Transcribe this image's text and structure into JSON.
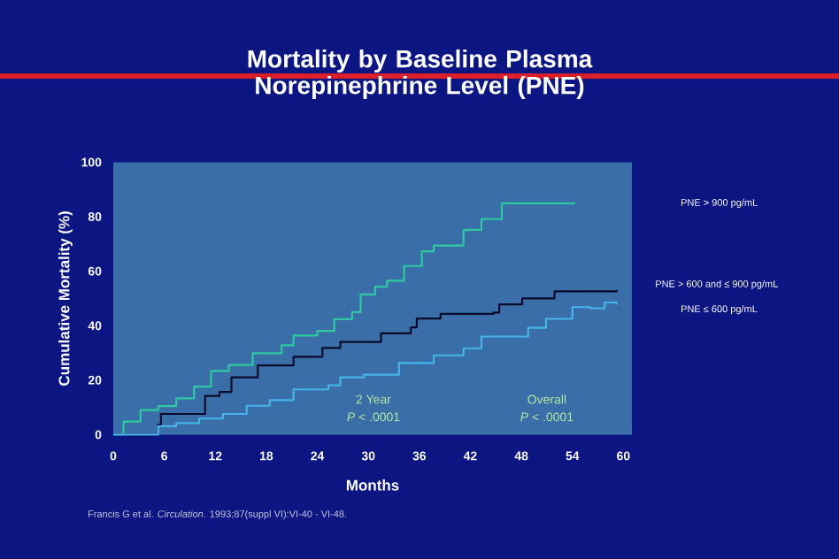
{
  "chart_data": {
    "type": "step",
    "title": "Mortality by Baseline Plasma Norepinephrine Level (PNE)",
    "xlabel": "Months",
    "ylabel": "Cumulative Mortality (%)",
    "xlim": [
      0,
      61
    ],
    "ylim": [
      0,
      100
    ],
    "xticks": [
      0,
      6,
      12,
      18,
      24,
      30,
      36,
      42,
      48,
      54,
      60
    ],
    "yticks": [
      0,
      20,
      40,
      60,
      80,
      100
    ],
    "grid": false,
    "annotations": [
      "2 Year",
      "*P* < .0001",
      "Overall",
      "*P* < .0001",
      "Francis G et al. *Circulation*. 1993;87(suppl VI):VI-40  - VI-48."
    ],
    "series": [
      {
        "name": "PNE > 900 pg/mL",
        "color": "#2ec9a0",
        "x": [
          0,
          1.2,
          3.2,
          5.3,
          7.4,
          9.5,
          11.5,
          13.6,
          16.4,
          19.8,
          21.2,
          24,
          26,
          28.1,
          29.1,
          30.8,
          32.2,
          34.2,
          36.3,
          37.7,
          39.8,
          41.2,
          43.3,
          44.7,
          45.7,
          54.3
        ],
        "values": [
          0,
          4.8,
          9,
          10.5,
          13.3,
          17.6,
          23.4,
          25.6,
          29.9,
          32.8,
          36.4,
          38.1,
          42.4,
          45,
          51.5,
          54.3,
          56.5,
          61.9,
          67.3,
          69.4,
          69.4,
          75.2,
          79.1,
          79.1,
          84.9,
          84.9
        ]
      },
      {
        "name": "PNE > 600 and ≤ 900 pg/mL",
        "color": "#0a0a2a",
        "x": [
          0,
          5.3,
          5.6,
          10.8,
          12.5,
          13.9,
          17,
          21.2,
          24.6,
          26.7,
          28.8,
          31.5,
          35,
          35.7,
          38.5,
          44.7,
          45.4,
          48.1,
          51.2,
          51.9,
          59.2
        ],
        "values": [
          0,
          3.7,
          7.6,
          14.2,
          15.7,
          21,
          25.4,
          28.6,
          31.8,
          34,
          34,
          37.2,
          39.4,
          42.6,
          44.3,
          44.8,
          47.8,
          50,
          50,
          52.6,
          53.1
        ]
      },
      {
        "name": "PNE ≤ 600 pg/mL",
        "color": "#45b4ec",
        "x": [
          0,
          5.3,
          7.4,
          10.1,
          12.9,
          15.7,
          18.4,
          21.2,
          25.3,
          26.7,
          29.5,
          33.6,
          37.7,
          41.2,
          43.3,
          48.8,
          50.9,
          54,
          56.1,
          57.8,
          59.2
        ],
        "values": [
          0,
          3.1,
          4.2,
          5.9,
          7.6,
          10.6,
          12.7,
          16.6,
          18.1,
          21,
          22,
          26.3,
          29.1,
          31.7,
          36,
          39.2,
          42.5,
          46.8,
          46.4,
          48.5,
          47.8
        ]
      }
    ]
  }
}
